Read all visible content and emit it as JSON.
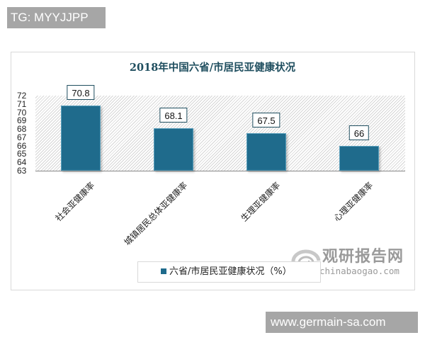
{
  "overlay": {
    "top_badge": "TG: MYYJJPP",
    "bottom_badge": "www.germain-sa.com"
  },
  "watermark": {
    "name_cn": "观研报告网",
    "domain": "chinabaogao.com"
  },
  "colors": {
    "bar": "#1f6b8c",
    "title": "#1f4e5f",
    "badge_bg": "#a6a6a6"
  },
  "chart_data": {
    "type": "bar",
    "title": "2018年中国六省/市居民亚健康状况",
    "categories": [
      "社会亚健康率",
      "城镇居民总体亚健康率",
      "生理亚健康率",
      "心理亚健康率"
    ],
    "series": [
      {
        "name": "六省/市居民亚健康状况（%）",
        "values": [
          70.8,
          68.1,
          67.5,
          66
        ]
      }
    ],
    "data_labels": [
      "70.8",
      "68.1",
      "67.5",
      "66"
    ],
    "xlabel": "",
    "ylabel": "",
    "ylim": [
      63,
      72
    ],
    "yticks": [
      "72",
      "71",
      "70",
      "69",
      "68",
      "67",
      "66",
      "65",
      "64",
      "63"
    ],
    "grid": false,
    "legend_position": "bottom",
    "legend": [
      "六省/市居民亚健康状况（%）"
    ]
  }
}
